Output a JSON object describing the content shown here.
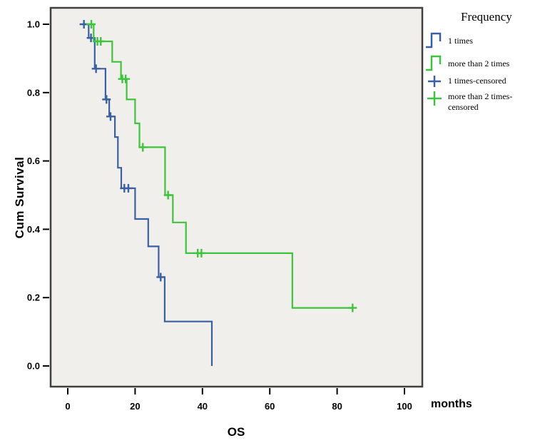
{
  "figure": {
    "ylabel": "Cum Survival",
    "xlabel": "OS",
    "x_unit_label": "months",
    "x_tick_labels": [
      "0",
      "20",
      "40",
      "60",
      "80",
      "100"
    ],
    "y_tick_labels": [
      "0.0",
      "0.2",
      "0.4",
      "0.6",
      "0.8",
      "1.0"
    ],
    "plot_bg_color": "#f0efeb",
    "frame_color": "#3f3f3f"
  },
  "legend": {
    "title": "Frequency",
    "items": [
      {
        "label": "1 times",
        "glyph": "step-line-icon",
        "color": "#3a60a4"
      },
      {
        "label": "more than 2 times",
        "glyph": "step-line-icon",
        "color": "#3cc43c"
      },
      {
        "label": "1 times-censored",
        "glyph": "plus-mark-icon",
        "color": "#3a60a4"
      },
      {
        "label": "more than 2 times-censored",
        "glyph": "plus-mark-icon",
        "color": "#3cc43c"
      }
    ]
  },
  "chart_data": {
    "type": "line",
    "subtype": "kaplan_meier_step",
    "title": "",
    "xlabel": "OS (months)",
    "ylabel": "Cum Survival",
    "xlim": [
      -5,
      105
    ],
    "ylim": [
      -0.06,
      1.05
    ],
    "x_ticks": [
      0,
      20,
      40,
      60,
      80,
      100
    ],
    "y_ticks": [
      0.0,
      0.2,
      0.4,
      0.6,
      0.8,
      1.0
    ],
    "grid": false,
    "legend_position": "outside-upper-right",
    "series": [
      {
        "name": "1 times",
        "color": "#3a60a4",
        "step_points": [
          [
            4.6,
            1.0
          ],
          [
            6.2,
            0.96
          ],
          [
            8.0,
            0.87
          ],
          [
            11.2,
            0.78
          ],
          [
            12.3,
            0.73
          ],
          [
            14.0,
            0.67
          ],
          [
            14.9,
            0.58
          ],
          [
            15.9,
            0.52
          ],
          [
            20.0,
            0.43
          ],
          [
            23.9,
            0.35
          ],
          [
            27.0,
            0.26
          ],
          [
            28.8,
            0.13
          ],
          [
            42.8,
            0.0
          ]
        ],
        "censored_points": [
          [
            4.8,
            1.0
          ],
          [
            6.9,
            0.96
          ],
          [
            8.4,
            0.87
          ],
          [
            11.5,
            0.78
          ],
          [
            12.7,
            0.73
          ],
          [
            16.8,
            0.52
          ],
          [
            18.0,
            0.52
          ],
          [
            27.6,
            0.26
          ]
        ]
      },
      {
        "name": "more than 2 times",
        "color": "#3cc43c",
        "step_points": [
          [
            5.5,
            1.0
          ],
          [
            7.7,
            0.95
          ],
          [
            13.2,
            0.89
          ],
          [
            15.8,
            0.84
          ],
          [
            17.5,
            0.78
          ],
          [
            20.0,
            0.71
          ],
          [
            21.3,
            0.64
          ],
          [
            28.9,
            0.5
          ],
          [
            31.2,
            0.42
          ],
          [
            35.1,
            0.33
          ],
          [
            66.7,
            0.17
          ],
          [
            84.6,
            0.17
          ]
        ],
        "censored_points": [
          [
            7.0,
            1.0
          ],
          [
            8.8,
            0.95
          ],
          [
            9.8,
            0.95
          ],
          [
            16.2,
            0.84
          ],
          [
            17.2,
            0.84
          ],
          [
            22.3,
            0.64
          ],
          [
            29.8,
            0.5
          ],
          [
            38.6,
            0.33
          ],
          [
            39.7,
            0.33
          ],
          [
            84.6,
            0.17
          ]
        ]
      }
    ]
  }
}
